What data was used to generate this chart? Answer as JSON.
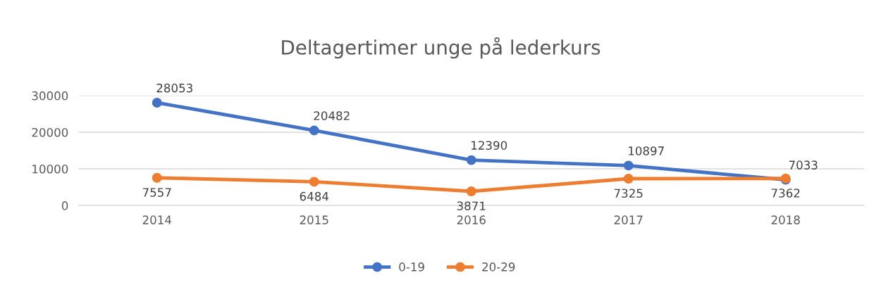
{
  "chart_data": {
    "type": "line",
    "title": "Deltagertimer unge på lederkurs",
    "categories": [
      "2014",
      "2015",
      "2016",
      "2017",
      "2018"
    ],
    "series": [
      {
        "name": "0-19",
        "color": "#4472c4",
        "values": [
          28053,
          20482,
          12390,
          10897,
          7033
        ]
      },
      {
        "name": "20-29",
        "color": "#ed7d31",
        "values": [
          7557,
          6484,
          3871,
          7325,
          7362
        ]
      }
    ],
    "ylim": [
      0,
      30000
    ],
    "yticks": [
      0,
      10000,
      20000,
      30000
    ],
    "grid": "y",
    "legend": "bottom",
    "marker": "circle",
    "line_style": "solid",
    "data_labels": true
  }
}
